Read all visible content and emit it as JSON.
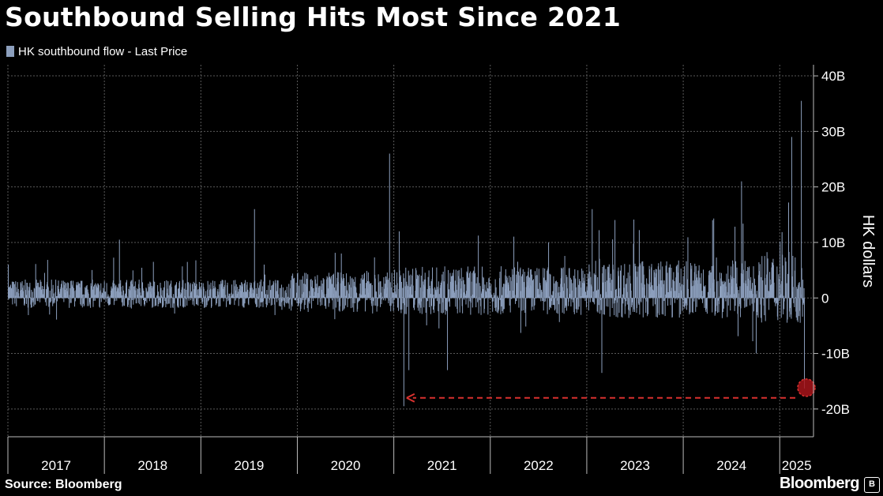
{
  "title": "Southbound Selling Hits Most Since 2021",
  "legend_label": "HK southbound flow - Last Price",
  "source": "Source: Bloomberg",
  "brand": "Bloomberg",
  "colors": {
    "background": "#000000",
    "series": "#8c9fbd",
    "grid": "#5a5a5a",
    "annotation": "#d8312f",
    "text": "#ffffff"
  },
  "chart_data": {
    "type": "bar",
    "ylabel": "HK dollars",
    "y_ticks": [
      "40B",
      "30B",
      "20B",
      "10B",
      "0",
      "-10B",
      "-20B"
    ],
    "y_tick_values": [
      40,
      30,
      20,
      10,
      0,
      -10,
      -20
    ],
    "ylim": [
      -25,
      42
    ],
    "unit": "B",
    "x_ticks": [
      "2017",
      "2018",
      "2019",
      "2020",
      "2021",
      "2022",
      "2023",
      "2024",
      "2025"
    ],
    "xlim": [
      2017.0,
      2025.35
    ],
    "grid": true,
    "legend_position": "top-left",
    "series": [
      {
        "name": "HK southbound flow - Last Price",
        "notable_points": [
          {
            "x": 2017.0,
            "y": 6
          },
          {
            "x": 2018.15,
            "y": 10.5
          },
          {
            "x": 2019.55,
            "y": 16
          },
          {
            "x": 2020.45,
            "y": 8
          },
          {
            "x": 2020.95,
            "y": 26
          },
          {
            "x": 2021.1,
            "y": -19.5
          },
          {
            "x": 2021.15,
            "y": -13
          },
          {
            "x": 2021.55,
            "y": -13
          },
          {
            "x": 2022.6,
            "y": 10
          },
          {
            "x": 2023.05,
            "y": 16
          },
          {
            "x": 2023.15,
            "y": -13.5
          },
          {
            "x": 2024.6,
            "y": 21
          },
          {
            "x": 2024.75,
            "y": -10
          },
          {
            "x": 2025.12,
            "y": 29
          },
          {
            "x": 2025.22,
            "y": 35.5
          },
          {
            "x": 2025.26,
            "y": -16.3
          }
        ]
      }
    ],
    "annotation": {
      "type": "dashed-arrow",
      "from": {
        "x": 2025.26,
        "y": -18
      },
      "to": {
        "x": 2021.1,
        "y": -18
      },
      "marker_x": 2025.26,
      "marker_y": -16.3
    }
  }
}
